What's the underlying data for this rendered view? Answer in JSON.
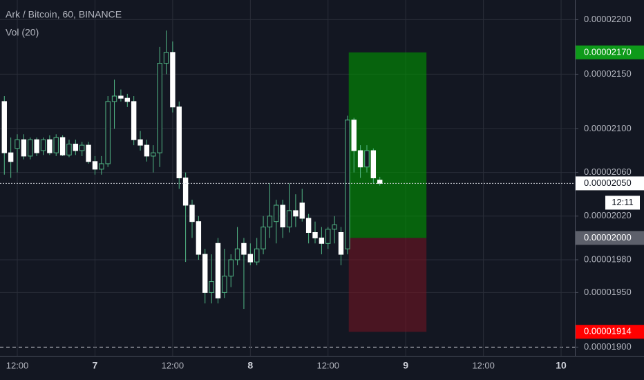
{
  "chart_data": {
    "type": "candlestick",
    "title": "Ark / Bitcoin, 60, BINANCE",
    "subtitle": "Vol (20)",
    "up_color": "#53b987",
    "down_color": "#ffffff",
    "grid": true,
    "x": [
      -2,
      -1,
      0,
      1,
      2,
      3,
      4,
      5,
      6,
      7,
      8,
      9,
      10,
      11,
      12,
      13,
      14,
      15,
      16,
      17,
      18,
      19,
      20,
      21,
      22,
      23,
      24,
      25,
      26,
      27,
      28,
      29,
      30,
      31,
      32,
      33,
      34,
      35,
      36,
      37,
      38,
      39,
      40,
      41,
      42,
      43,
      44,
      45,
      46,
      47,
      48,
      49,
      50,
      51,
      52,
      53,
      54,
      55,
      56
    ],
    "open": [
      2.125e-05,
      2.078e-05,
      2.082e-05,
      2.09e-05,
      2.075e-05,
      2.09e-05,
      2.08e-05,
      2.09e-05,
      2.078e-05,
      2.092e-05,
      2.076e-05,
      2.086e-05,
      2.08e-05,
      2.085e-05,
      2.07e-05,
      2.063e-05,
      2.068e-05,
      2.125e-05,
      2.13e-05,
      2.128e-05,
      2.125e-05,
      2.09e-05,
      2.085e-05,
      2.075e-05,
      2.078e-05,
      2.16e-05,
      2.17e-05,
      2.12e-05,
      2.055e-05,
      2.03e-05,
      2.015e-05,
      1.985e-05,
      1.95e-05,
      1.995e-05,
      1.95e-05,
      1.965e-05,
      1.98e-05,
      1.995e-05,
      1.985e-05,
      1.978e-05,
      1.99e-05,
      2.01e-05,
      2.015e-05,
      2.03e-05,
      2.01e-05,
      2.025e-05,
      2.032e-05,
      2.018e-05,
      2.005e-05,
      2e-05,
      1.995e-05,
      2.008e-05,
      2.005e-05,
      1.99e-05,
      2.108e-05,
      2.08e-05,
      2.065e-05,
      2.08e-05,
      2.053e-05
    ],
    "high": [
      2.13e-05,
      2.092e-05,
      2.095e-05,
      2.095e-05,
      2.092e-05,
      2.092e-05,
      2.092e-05,
      2.094e-05,
      2.095e-05,
      2.094e-05,
      2.09e-05,
      2.09e-05,
      2.088e-05,
      2.088e-05,
      2.075e-05,
      2.075e-05,
      2.13e-05,
      2.145e-05,
      2.136e-05,
      2.132e-05,
      2.13e-05,
      2.098e-05,
      2.09e-05,
      2.085e-05,
      2.175e-05,
      2.19e-05,
      2.18e-05,
      2.125e-05,
      2.06e-05,
      2.035e-05,
      2.02e-05,
      1.99e-05,
      1.985e-05,
      2e-05,
      1.99e-05,
      1.985e-05,
      2.01e-05,
      2e-05,
      1.995e-05,
      2e-05,
      2.02e-05,
      2.05e-05,
      2.035e-05,
      2.035e-05,
      2.05e-05,
      2.04e-05,
      2.045e-05,
      2.022e-05,
      2.015e-05,
      2.01e-05,
      2.01e-05,
      2.02e-05,
      2.01e-05,
      2.112e-05,
      2.11e-05,
      2.085e-05,
      2.085e-05,
      2.082e-05,
      2.056e-05
    ],
    "low": [
      2.058e-05,
      2.055e-05,
      2.06e-05,
      2.072e-05,
      2.072e-05,
      2.075e-05,
      2.076e-05,
      2.076e-05,
      2.075e-05,
      2.075e-05,
      2.074e-05,
      2.076e-05,
      2.075e-05,
      2.068e-05,
      2.058e-05,
      2.058e-05,
      2.065e-05,
      2.1e-05,
      2.125e-05,
      2.12e-05,
      2.085e-05,
      2.08e-05,
      2.07e-05,
      2.06e-05,
      2.065e-05,
      2.15e-05,
      2.115e-05,
      2.045e-05,
      1.978e-05,
      2e-05,
      1.98e-05,
      1.94e-05,
      1.94e-05,
      1.94e-05,
      1.945e-05,
      1.955e-05,
      1.975e-05,
      1.935e-05,
      1.975e-05,
      1.975e-05,
      1.985e-05,
      2e-05,
      1.995e-05,
      2e-05,
      2.005e-05,
      2.01e-05,
      2.015e-05,
      1.995e-05,
      1.995e-05,
      1.985e-05,
      1.99e-05,
      1.995e-05,
      1.975e-05,
      1.985e-05,
      2.06e-05,
      2.055e-05,
      2.06e-05,
      2.05e-05,
      2.048e-05
    ],
    "close": [
      2.078e-05,
      2.07e-05,
      2.09e-05,
      2.075e-05,
      2.09e-05,
      2.078e-05,
      2.09e-05,
      2.078e-05,
      2.092e-05,
      2.076e-05,
      2.086e-05,
      2.08e-05,
      2.085e-05,
      2.07e-05,
      2.063e-05,
      2.068e-05,
      2.125e-05,
      2.13e-05,
      2.128e-05,
      2.125e-05,
      2.09e-05,
      2.085e-05,
      2.075e-05,
      2.078e-05,
      2.16e-05,
      2.17e-05,
      2.12e-05,
      2.055e-05,
      2.03e-05,
      2.015e-05,
      1.985e-05,
      1.95e-05,
      1.96e-05,
      1.945e-05,
      1.965e-05,
      1.98e-05,
      1.99e-05,
      1.985e-05,
      1.978e-05,
      1.99e-05,
      2.01e-05,
      2.02e-05,
      2.03e-05,
      2.01e-05,
      2.025e-05,
      2.02e-05,
      2.018e-05,
      2.005e-05,
      2e-05,
      1.995e-05,
      2.008e-05,
      2.012e-05,
      1.985e-05,
      2.108e-05,
      2.08e-05,
      2.065e-05,
      2.08e-05,
      2.055e-05,
      2.05e-05
    ],
    "xlim": [
      -2.67,
      86.13
    ],
    "xticks": [
      {
        "value": 0,
        "label": "12:00"
      },
      {
        "value": 12,
        "label": "7"
      },
      {
        "value": 24,
        "label": "12:00"
      },
      {
        "value": 36,
        "label": "8"
      },
      {
        "value": 48,
        "label": "12:00"
      },
      {
        "value": 60,
        "label": "9"
      },
      {
        "value": 72,
        "label": "12:00"
      },
      {
        "value": 84,
        "label": "10"
      }
    ],
    "ylim": [
      1.892e-05,
      2.218e-05
    ],
    "yticks": [
      {
        "value": 2.2e-05,
        "label": "0.00002200"
      },
      {
        "value": 2.15e-05,
        "label": "0.00002150"
      },
      {
        "value": 2.1e-05,
        "label": "0.00002100"
      },
      {
        "value": 2.06e-05,
        "label": "0.00002060"
      },
      {
        "value": 2.02e-05,
        "label": "0.00002020"
      },
      {
        "value": 1.98e-05,
        "label": "0.00001980"
      },
      {
        "value": 1.95e-05,
        "label": "0.00001950"
      },
      {
        "value": 1.9e-05,
        "label": "0.00001900"
      }
    ],
    "current": {
      "value": 2.05e-05,
      "label": "0.00002050",
      "countdown": "12:11"
    },
    "position": {
      "x_start": 51.2,
      "x_end": 63.2,
      "target": {
        "value": 2.17e-05,
        "label": "0.00002170"
      },
      "entry": {
        "value": 2e-05,
        "label": "0.00002000"
      },
      "stop": {
        "value": 1.914e-05,
        "label": "0.00001914"
      }
    }
  }
}
